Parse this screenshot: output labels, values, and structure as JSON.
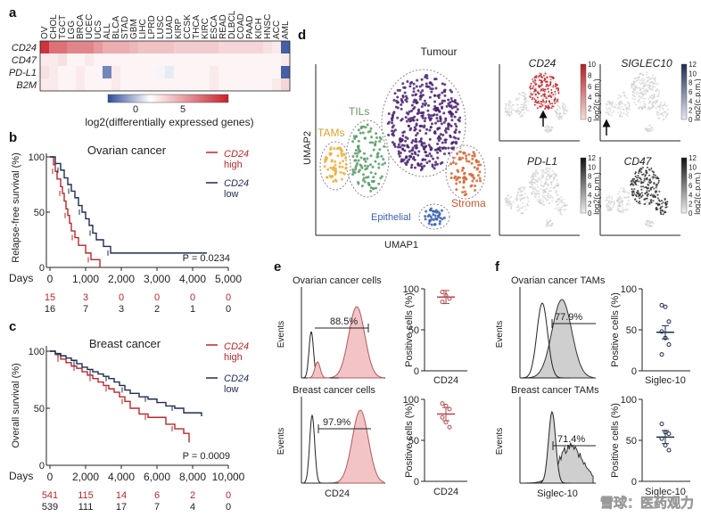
{
  "panel_labels": {
    "a": "a",
    "b": "b",
    "c": "c",
    "d": "d",
    "e": "e",
    "f": "f"
  },
  "panel_a": {
    "cancer_types": [
      "OV",
      "CHOL",
      "TGCT",
      "LGG",
      "BRCA",
      "UCEC",
      "UCS",
      "ALL",
      "BLCA",
      "STAD",
      "GBM",
      "LIHC",
      "LPRD",
      "LUSC",
      "LUAD",
      "KIRP",
      "CCSK",
      "THCA",
      "KIRC",
      "ESCA",
      "READ",
      "DLBCL",
      "COAD",
      "PAAD",
      "KICH",
      "HNSC",
      "ACC",
      "AML"
    ],
    "genes": [
      "CD24",
      "CD47",
      "PD-L1",
      "B2M"
    ],
    "heat_values": [
      [
        10,
        7,
        7,
        6,
        6,
        6,
        5,
        4,
        4,
        4,
        3.5,
        3,
        3,
        3,
        3,
        2.5,
        2.5,
        2.5,
        2.5,
        2.5,
        2,
        2,
        2,
        2,
        2,
        1.5,
        1,
        -8
      ],
      [
        1,
        1,
        1.5,
        0.5,
        0.5,
        1,
        0.5,
        0.5,
        0.5,
        0.5,
        0.5,
        0.5,
        0.5,
        0.5,
        0.5,
        0.5,
        0.5,
        0.5,
        0.5,
        0.5,
        0.5,
        0.5,
        0.5,
        0.5,
        0.5,
        0.5,
        0.5,
        1
      ],
      [
        1.5,
        1,
        0.5,
        0.5,
        1,
        0.5,
        0.5,
        -6,
        1,
        0.5,
        0.5,
        0.5,
        0.5,
        -0.5,
        -1,
        0.5,
        0.5,
        0.5,
        0.5,
        1,
        0.5,
        0.5,
        0.5,
        0.5,
        0.5,
        0.5,
        0.5,
        -8
      ],
      [
        1,
        1,
        0.5,
        0.5,
        1,
        0.5,
        0.5,
        0.5,
        1,
        0.5,
        0.5,
        0.5,
        0.5,
        0.5,
        0.5,
        0.5,
        0.5,
        0.5,
        0.5,
        1,
        0.5,
        0.5,
        0.5,
        0.5,
        0.5,
        0.5,
        1,
        2
      ]
    ],
    "colorbar_ticks": [
      "0",
      "5"
    ],
    "colorbar_label": "log2(differentially expressed genes)"
  },
  "panel_b": {
    "title": "Ovarian cancer",
    "ylabel": "Relapse-free survival (%)",
    "xlabel": "Days",
    "x_ticks": [
      "0",
      "1,000",
      "2,000",
      "3,000",
      "4,000",
      "5,000"
    ],
    "y_ticks": [
      "0",
      "50",
      "100"
    ],
    "legend_high": "CD24",
    "legend_high_sub": "high",
    "legend_low": "CD24",
    "legend_low_sub": "low",
    "p_value": "P = 0.0234",
    "risk_high": [
      "15",
      "3",
      "0",
      "0",
      "0",
      "0"
    ],
    "risk_low": [
      "16",
      "7",
      "3",
      "2",
      "1",
      "0"
    ]
  },
  "panel_c": {
    "title": "Breast cancer",
    "ylabel": "Overall survival (%)",
    "xlabel": "Days",
    "x_ticks": [
      "0",
      "2,000",
      "4,000",
      "6,000",
      "8,000",
      "10,000"
    ],
    "y_ticks": [
      "0",
      "50",
      "100"
    ],
    "legend_high": "CD24",
    "legend_high_sub": "high",
    "legend_low": "CD24",
    "legend_low_sub": "low",
    "p_value": "P = 0.0009",
    "risk_high": [
      "541",
      "115",
      "14",
      "6",
      "2",
      "0"
    ],
    "risk_low": [
      "539",
      "111",
      "17",
      "7",
      "4",
      "0"
    ]
  },
  "panel_d": {
    "cluster_labels": {
      "tumour": "Tumour",
      "tils": "TILs",
      "tams": "TAMs",
      "stroma": "Stroma",
      "epithelial": "Epithelial"
    },
    "xlabel": "UMAP1",
    "ylabel": "UMAP2",
    "feature_titles": [
      "CD24",
      "SIGLEC10",
      "PD-L1",
      "CD47"
    ],
    "scale_ticks": [
      "0",
      "2",
      "4",
      "6",
      "8",
      "10",
      "12"
    ],
    "scale_label": "log2(c.p.m.)",
    "colors": {
      "tumour": "#4a2270",
      "tils": "#5a9a68",
      "tams": "#e8b040",
      "stroma": "#d06a38",
      "epithelial": "#3a62b0"
    }
  },
  "panel_e": {
    "top_title": "Ovarian cancer cells",
    "top_percent": "88.5%",
    "bottom_title": "Breast cancer cells",
    "bottom_percent": "97.9%",
    "hist_ylabel": "Events",
    "hist_xlabel": "CD24",
    "dot_ylabel": "Positive cells (%)",
    "dot_xlabel_top": "CD24",
    "dot_xlabel_bottom": "CD24",
    "y_ticks": [
      "0",
      "50",
      "100"
    ]
  },
  "panel_f": {
    "top_title": "Ovarian cancer TAMs",
    "top_percent": "77.9%",
    "bottom_title": "Breast cancer TAMs",
    "bottom_percent": "71.4%",
    "hist_ylabel": "Events",
    "hist_xlabel": "Siglec-10",
    "dot_ylabel": "Positive cells (%)",
    "dot_xlabel_top": "Siglec-10",
    "dot_xlabel_bottom": "Siglec-10",
    "y_ticks": [
      "0",
      "50",
      "100"
    ]
  },
  "watermark": "雪球：医药观力",
  "chart_data": [
    {
      "type": "heatmap",
      "title": "",
      "xlabel": "",
      "ylabel": "",
      "categories": [
        "OV",
        "CHOL",
        "TGCT",
        "LGG",
        "BRCA",
        "UCEC",
        "UCS",
        "ALL",
        "BLCA",
        "STAD",
        "GBM",
        "LIHC",
        "LPRD",
        "LUSC",
        "LUAD",
        "KIRP",
        "CCSK",
        "THCA",
        "KIRC",
        "ESCA",
        "READ",
        "DLBCL",
        "COAD",
        "PAAD",
        "KICH",
        "HNSC",
        "ACC",
        "AML"
      ],
      "rows": [
        "CD24",
        "CD47",
        "PD-L1",
        "B2M"
      ],
      "colorbar": "log2(differentially expressed genes)"
    },
    {
      "type": "line",
      "title": "Ovarian cancer",
      "xlabel": "Days",
      "ylabel": "Relapse-free survival (%)",
      "xlim": [
        0,
        5000
      ],
      "ylim": [
        0,
        100
      ],
      "series": [
        {
          "name": "CD24 high",
          "x": [
            0,
            100,
            150,
            200,
            300,
            350,
            400,
            450,
            500,
            550,
            600,
            700,
            800,
            1000,
            1150,
            1300,
            1400
          ],
          "values": [
            100,
            93,
            87,
            80,
            73,
            67,
            60,
            53,
            47,
            40,
            33,
            27,
            20,
            13,
            7,
            7,
            0
          ]
        },
        {
          "name": "CD24 low",
          "x": [
            0,
            150,
            300,
            400,
            500,
            600,
            700,
            800,
            900,
            1000,
            1100,
            1200,
            1300,
            1500,
            1700,
            4400
          ],
          "values": [
            100,
            94,
            88,
            81,
            75,
            69,
            63,
            56,
            50,
            44,
            38,
            31,
            25,
            19,
            13,
            13
          ]
        }
      ]
    },
    {
      "type": "line",
      "title": "Breast cancer",
      "xlabel": "Days",
      "ylabel": "Overall survival (%)",
      "xlim": [
        0,
        10000
      ],
      "ylim": [
        0,
        100
      ],
      "series": [
        {
          "name": "CD24 high",
          "x": [
            0,
            300,
            600,
            900,
            1200,
            1500,
            1800,
            2100,
            2400,
            2700,
            3000,
            3300,
            3600,
            3900,
            4200,
            4500,
            5000,
            5500,
            6000,
            6500,
            7000,
            7500,
            7800
          ],
          "values": [
            100,
            97,
            93,
            90,
            87,
            85,
            82,
            79,
            76,
            73,
            70,
            67,
            64,
            60,
            56,
            50,
            45,
            42,
            42,
            36,
            32,
            28,
            20
          ]
        },
        {
          "name": "CD24 low",
          "x": [
            0,
            300,
            600,
            900,
            1200,
            1500,
            1800,
            2100,
            2400,
            2700,
            3000,
            3300,
            3600,
            3900,
            4200,
            4500,
            5000,
            5500,
            6000,
            6500,
            7000,
            7500,
            8500
          ],
          "values": [
            100,
            98,
            96,
            94,
            92,
            89,
            86,
            84,
            82,
            80,
            78,
            76,
            73,
            70,
            66,
            63,
            60,
            58,
            55,
            52,
            50,
            46,
            43
          ]
        }
      ]
    },
    {
      "type": "scatter",
      "title": "Ovarian cancer cells",
      "xlabel": "CD24",
      "ylabel": "Positive cells (%)",
      "ylim": [
        0,
        100
      ],
      "values": [
        96,
        92,
        88,
        84
      ],
      "mean": 90
    },
    {
      "type": "scatter",
      "title": "Breast cancer cells",
      "xlabel": "CD24",
      "ylabel": "Positive cells (%)",
      "ylim": [
        0,
        100
      ],
      "values": [
        95,
        92,
        88,
        78,
        72,
        66
      ],
      "mean": 82
    },
    {
      "type": "scatter",
      "title": "Ovarian cancer TAMs",
      "xlabel": "Siglec-10",
      "ylabel": "Positive cells (%)",
      "ylim": [
        0,
        100
      ],
      "values": [
        80,
        78,
        60,
        48,
        40,
        32,
        20
      ],
      "mean": 47
    },
    {
      "type": "scatter",
      "title": "Breast cancer TAMs",
      "xlabel": "Siglec-10",
      "ylabel": "Positive cells (%)",
      "ylim": [
        0,
        100
      ],
      "values": [
        70,
        60,
        58,
        52,
        44,
        38
      ],
      "mean": 54
    }
  ]
}
